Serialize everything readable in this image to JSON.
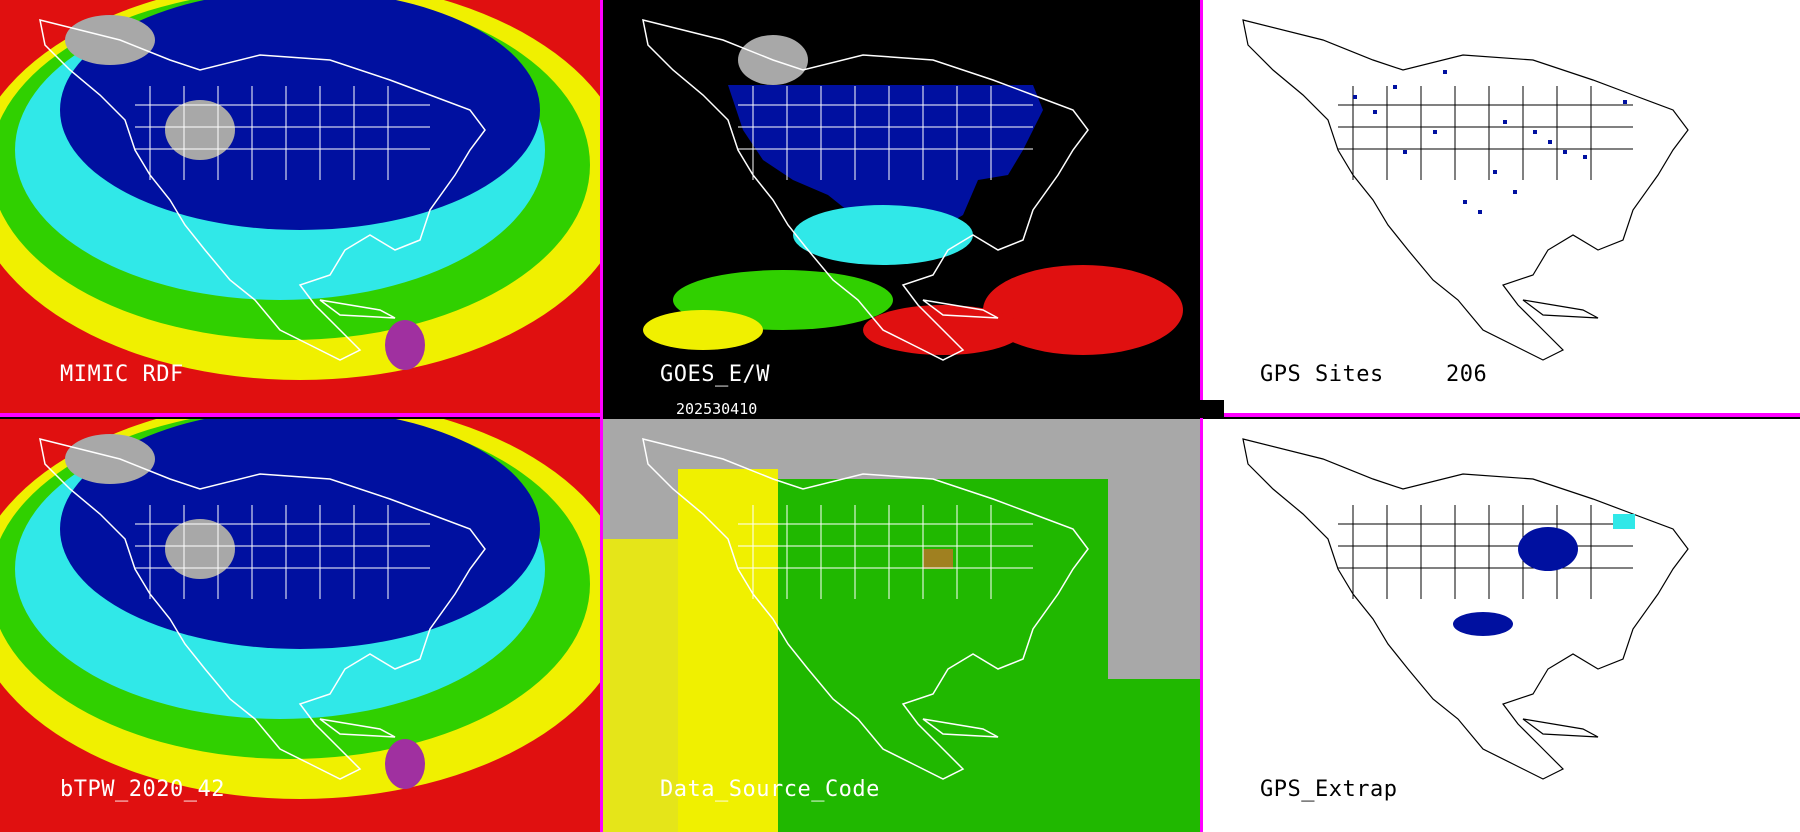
{
  "panels": [
    {
      "id": "mimic",
      "label": "MIMIC RDF",
      "style": "tpw"
    },
    {
      "id": "goes",
      "label": "GOES_E/W",
      "style": "goes"
    },
    {
      "id": "gps_sites",
      "label": "GPS Sites",
      "count": "206",
      "style": "gps"
    },
    {
      "id": "btpw",
      "label": "bTPW_2020_42",
      "style": "tpw"
    },
    {
      "id": "dsc",
      "label": "Data_Source_Code",
      "style": "dsc"
    },
    {
      "id": "gps_extrap",
      "label": "GPS_Extrap",
      "style": "gpsx"
    }
  ],
  "date_stamp": "202530410",
  "colors": {
    "divider": "#ff00ff",
    "ocean_red": "#e01010",
    "yellow": "#f0f000",
    "green": "#30d000",
    "cyan": "#30e8e8",
    "dark_blue": "#0010a0",
    "gray": "#a8a8a8",
    "magenta": "#a030a0"
  }
}
